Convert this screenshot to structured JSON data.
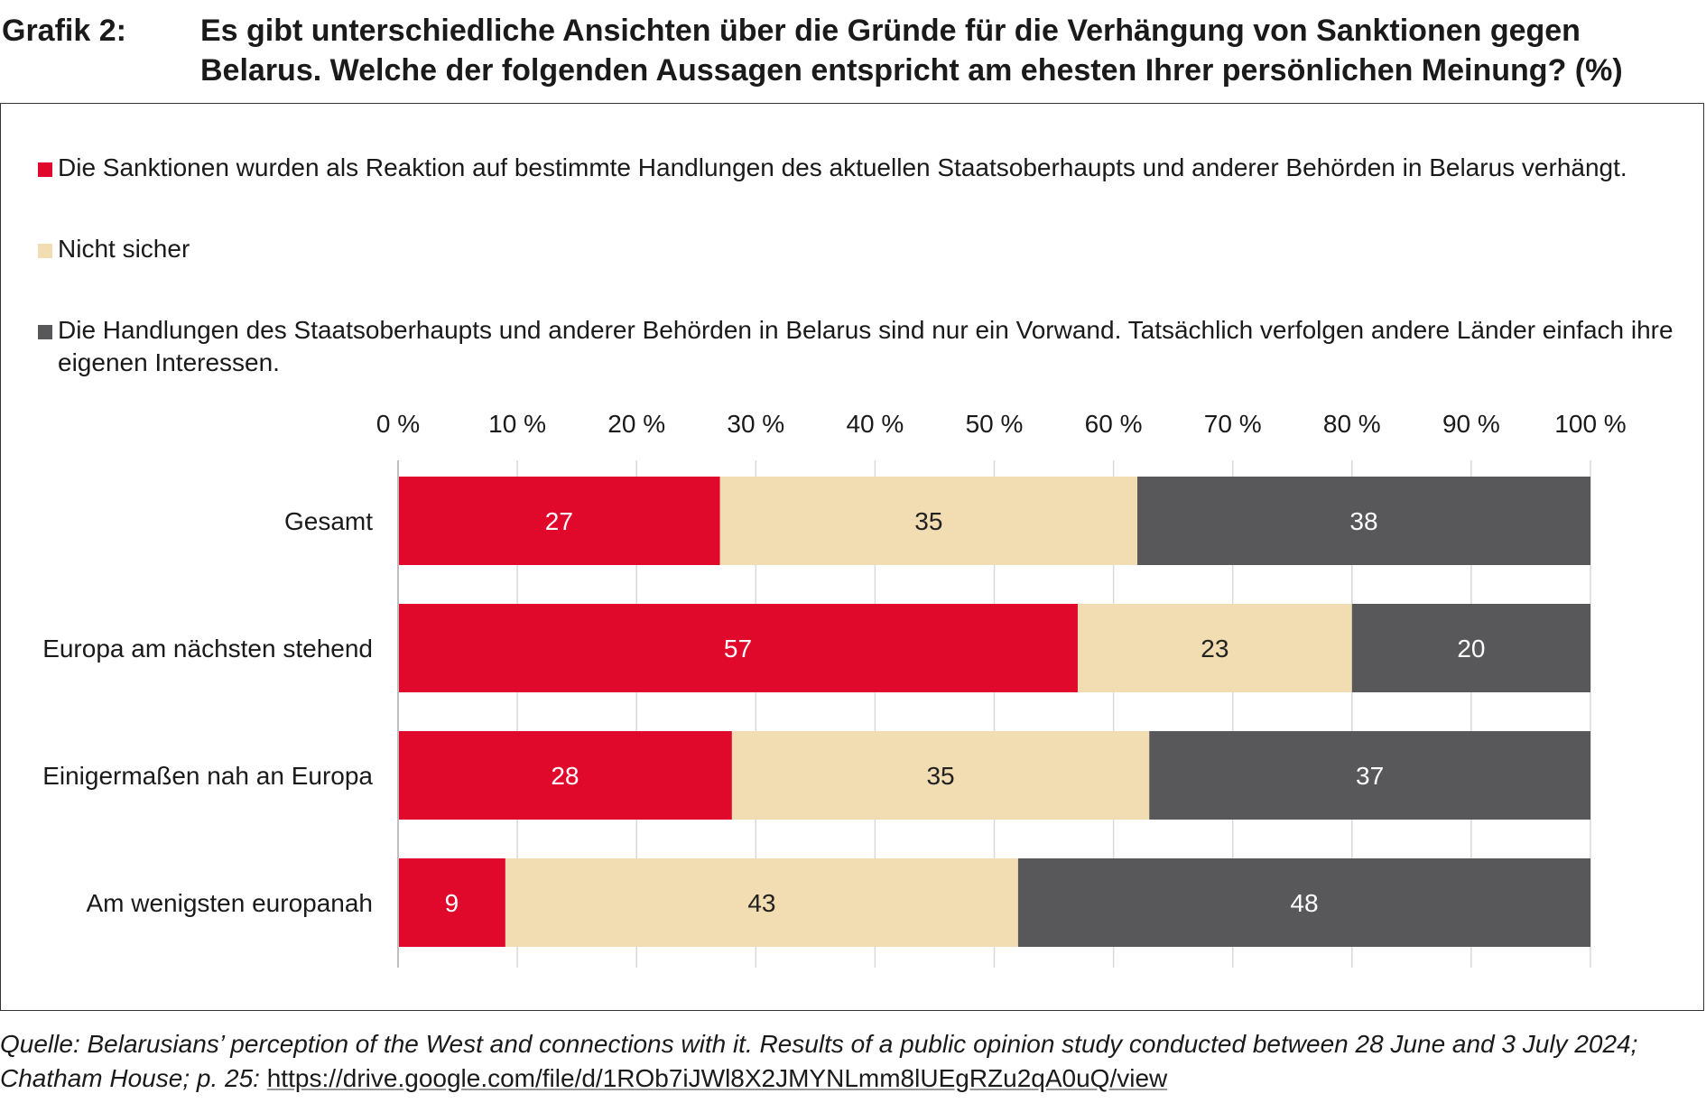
{
  "header": {
    "label": "Grafik 2:",
    "title": "Es gibt unterschiedliche Ansichten über die Gründe für die Verhängung von Sanktionen gegen Belarus. Welche der folgenden Aussagen entspricht am ehesten Ihrer persönlichen Meinung? (%)"
  },
  "colors": {
    "red": "#e0092b",
    "beige": "#f2dcb1",
    "gray": "#58585a"
  },
  "chart_data": {
    "type": "bar",
    "orientation": "horizontal",
    "stacked": true,
    "title": "Es gibt unterschiedliche Ansichten über die Gründe für die Verhängung von Sanktionen gegen Belarus. Welche der folgenden Aussagen entspricht am ehesten Ihrer persönlichen Meinung? (%)",
    "categories": [
      "Gesamt",
      "Europa am nächsten stehend",
      "Einigermaßen nah an Europa",
      "Am wenigsten europanah"
    ],
    "series": [
      {
        "name": "Die Sanktionen wurden als Reaktion auf bestimmte Handlungen des aktuellen Staatsoberhaupts und anderer Behörden in Belarus verhängt.",
        "values": [
          27,
          57,
          28,
          9
        ],
        "color": "#e0092b",
        "label_color": "#ffffff"
      },
      {
        "name": "Nicht sicher",
        "values": [
          35,
          23,
          35,
          43
        ],
        "color": "#f2dcb1",
        "label_color": "#222222"
      },
      {
        "name": "Die Handlungen des Staatsoberhaupts und anderer Behörden in Belarus sind nur ein Vorwand. Tatsächlich verfolgen andere Länder einfach ihre eigenen Interessen.",
        "values": [
          38,
          20,
          37,
          48
        ],
        "color": "#58585a",
        "label_color": "#ffffff"
      }
    ],
    "xlim": [
      0,
      100
    ],
    "xticks": [
      "0 %",
      "10 %",
      "20 %",
      "30 %",
      "40 %",
      "50 %",
      "60 %",
      "70 %",
      "80 %",
      "90 %",
      "100 %"
    ],
    "xtick_values": [
      0,
      10,
      20,
      30,
      40,
      50,
      60,
      70,
      80,
      90,
      100
    ],
    "xaxis_position": "top",
    "grid": true,
    "legend_position": "top"
  },
  "source": {
    "text": "Quelle: Belarusians’ perception of the West and connections with it. Results of a public opinion study conducted between 28 June and 3 July 2024; Chatham House; p. 25: ",
    "link": "https://drive.google.com/file/d/1ROb7iJWl8X2JMYNLmm8lUEgRZu2qA0uQ/view"
  }
}
